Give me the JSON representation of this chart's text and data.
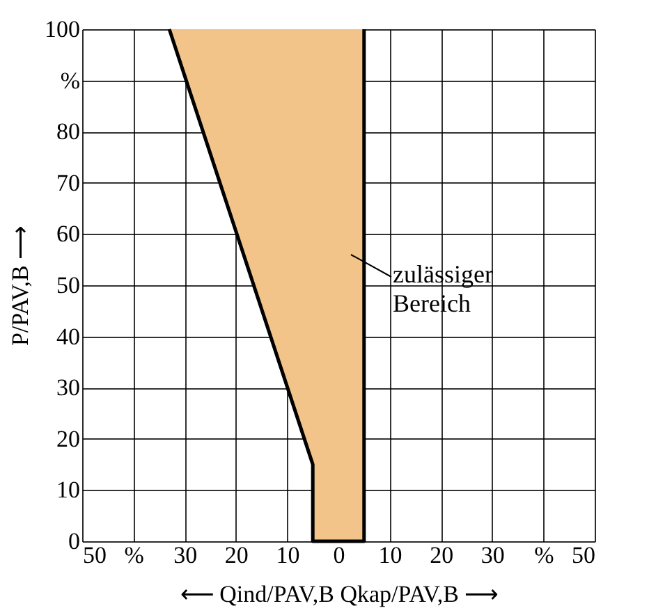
{
  "chart_data": {
    "type": "area",
    "xlabel": "⟵ Qind/PAV,B          Qkap/PAV,B ⟶",
    "ylabel": "P/PAV,B ⟶",
    "series": [
      {
        "x": [
          -33,
          -5,
          -5,
          5,
          5
        ],
        "values": [
          100,
          15,
          0,
          0,
          100
        ],
        "color": "#f2c48a"
      }
    ],
    "xlim": [
      -50,
      50
    ],
    "ylim": [
      0,
      100
    ],
    "xticks": [
      {
        "value": -50,
        "label": "50"
      },
      {
        "value": -40,
        "label": "%"
      },
      {
        "value": -30,
        "label": "30"
      },
      {
        "value": -20,
        "label": "20"
      },
      {
        "value": -10,
        "label": "10"
      },
      0,
      10,
      20,
      30,
      {
        "value": 40,
        "label": "%"
      },
      50
    ],
    "yticks": [
      0,
      10,
      20,
      30,
      40,
      50,
      60,
      70,
      80,
      {
        "value": 90,
        "label": "%"
      },
      100
    ],
    "grid": true,
    "annotations": [
      "zulässiger\nBereich"
    ]
  }
}
